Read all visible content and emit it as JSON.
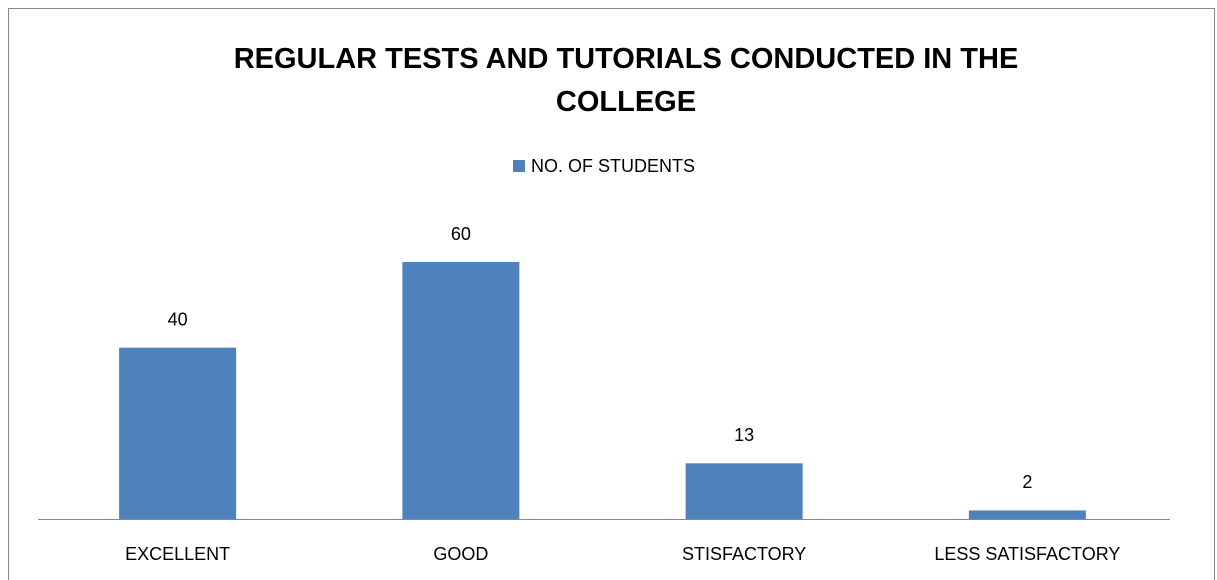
{
  "chart_data": {
    "type": "bar",
    "title": "REGULAR TESTS AND TUTORIALS CONDUCTED IN THE COLLEGE",
    "categories": [
      "EXCELLENT",
      "GOOD",
      "STISFACTORY",
      "LESS SATISFACTORY"
    ],
    "series": [
      {
        "name": "NO. OF STUDENTS",
        "color": "#4f81bd",
        "values": [
          40,
          60,
          13,
          2
        ]
      }
    ],
    "legend": "top"
  }
}
